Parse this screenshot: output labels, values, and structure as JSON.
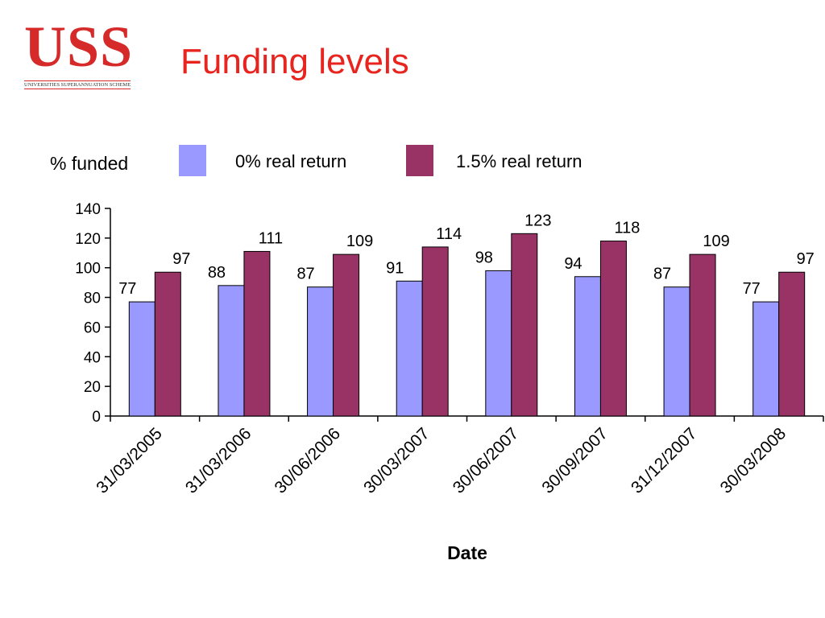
{
  "logo": {
    "mark": "USS",
    "subtitle": "UNIVERSITIES SUPERANNUATION SCHEME"
  },
  "title": "Funding levels",
  "chart_data": {
    "type": "bar",
    "ylabel": "% funded",
    "xlabel": "Date",
    "categories": [
      "31/03/2005",
      "31/03/2006",
      "30/06/2006",
      "30/03/2007",
      "30/06/2007",
      "30/09/2007",
      "31/12/2007",
      "30/03/2008"
    ],
    "series": [
      {
        "name": "0% real return",
        "color": "#9999ff",
        "values": [
          77,
          88,
          87,
          91,
          98,
          94,
          87,
          77
        ]
      },
      {
        "name": "1.5% real return",
        "color": "#993366",
        "values": [
          97,
          111,
          109,
          114,
          123,
          118,
          109,
          97
        ]
      }
    ],
    "ylim": [
      0,
      140
    ],
    "yticks": [
      0,
      20,
      40,
      60,
      80,
      100,
      120,
      140
    ],
    "grid": false,
    "legend": "top"
  }
}
